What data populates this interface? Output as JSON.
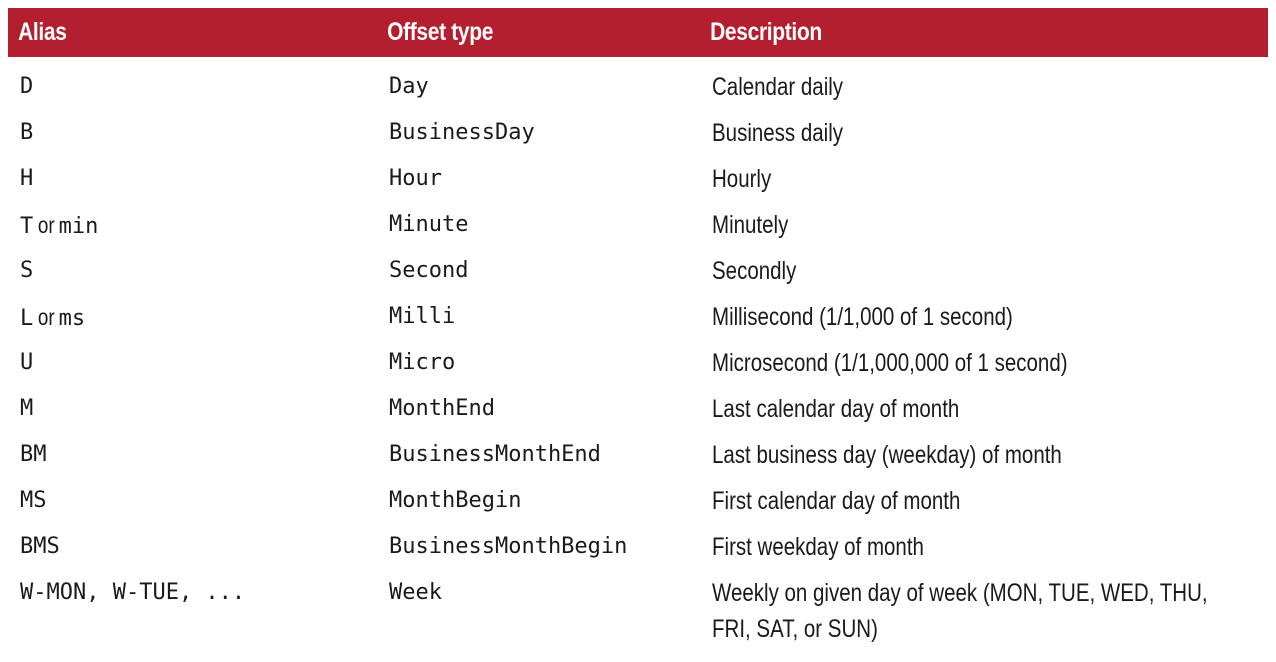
{
  "header": {
    "alias": "Alias",
    "offset_type": "Offset type",
    "description": "Description"
  },
  "colors": {
    "header_bg": "#b31f2e",
    "header_text": "#ffffff"
  },
  "rows": [
    {
      "alias": "D",
      "offset": "Day",
      "description": "Calendar daily"
    },
    {
      "alias": "B",
      "offset": "BusinessDay",
      "description": "Business daily"
    },
    {
      "alias": "H",
      "offset": "Hour",
      "description": "Hourly"
    },
    {
      "alias_a": "T",
      "alias_or": "or",
      "alias_b": "min",
      "offset": "Minute",
      "description": "Minutely"
    },
    {
      "alias": "S",
      "offset": "Second",
      "description": "Secondly"
    },
    {
      "alias_a": "L",
      "alias_or": "or",
      "alias_b": "ms",
      "offset": "Milli",
      "description": "Millisecond (1/1,000 of 1 second)"
    },
    {
      "alias": "U",
      "offset": "Micro",
      "description": "Microsecond (1/1,000,000 of 1 second)"
    },
    {
      "alias": "M",
      "offset": "MonthEnd",
      "description": "Last calendar day of month"
    },
    {
      "alias": "BM",
      "offset": "BusinessMonthEnd",
      "description": "Last business day (weekday) of month"
    },
    {
      "alias": "MS",
      "offset": "MonthBegin",
      "description": "First calendar day of month"
    },
    {
      "alias": "BMS",
      "offset": "BusinessMonthBegin",
      "description": "First weekday of month"
    },
    {
      "alias": "W-MON, W-TUE, ...",
      "offset": "Week",
      "description_line1": "Weekly on given day of week (MON, TUE, WED, THU,",
      "description_line2": "FRI, SAT, or SUN)"
    }
  ]
}
